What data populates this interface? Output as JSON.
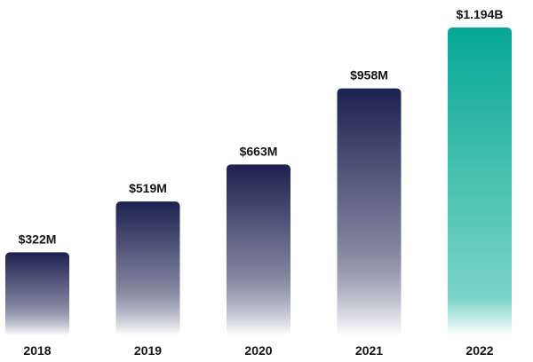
{
  "chart_data": {
    "type": "bar",
    "categories": [
      "2018",
      "2019",
      "2020",
      "2021",
      "2022"
    ],
    "values": [
      322,
      519,
      663,
      958,
      1194
    ],
    "value_unit": "USD millions",
    "data_labels": [
      "$322M",
      "$519M",
      "$663M",
      "$958M",
      "$1.194B"
    ],
    "ylim": [
      0,
      1194
    ],
    "grid": false,
    "legend": "none",
    "title": "",
    "xlabel": "",
    "ylabel": ""
  },
  "colors": {
    "primary_bar_top": "#1c2150",
    "primary_bar_bottom": "#ffffff",
    "highlight_bar_top": "#06a895",
    "highlight_bar_bottom": "#7cd4c9",
    "text": "#141414"
  },
  "highlight_index": 4
}
